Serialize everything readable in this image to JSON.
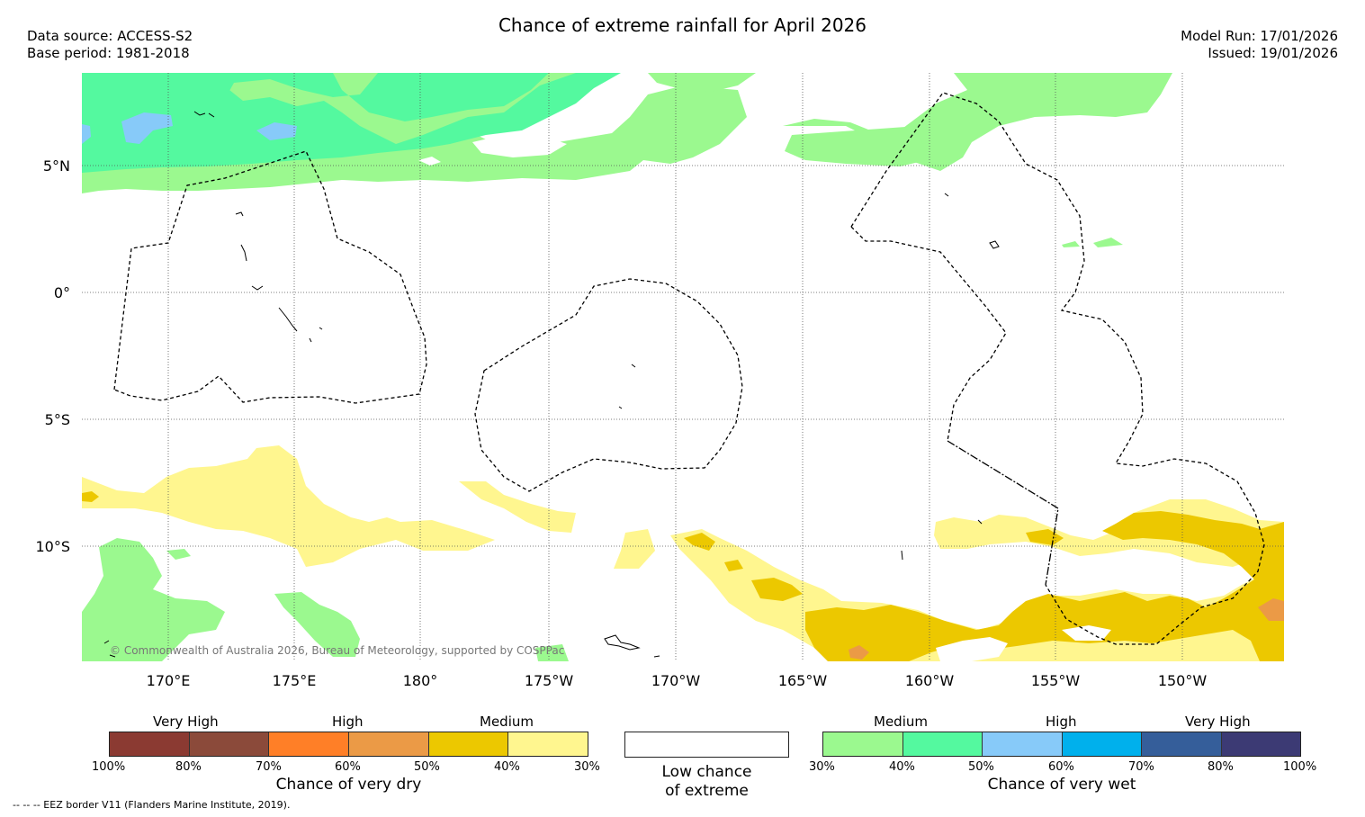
{
  "title": "Chance of extreme rainfall for April 2026",
  "data_source": "Data source: ACCESS-S2",
  "base_period": "Base period: 1981-2018",
  "model_run": "Model Run: 17/01/2026",
  "issued": "Issued: 19/01/2026",
  "copyright": "© Commonwealth of Australia 2026, Bureau of Meteorology, supported by COSPPac",
  "map": {
    "lat_labels": [
      "5°N",
      "0°",
      "5°S",
      "10°S"
    ],
    "lon_labels": [
      "170°E",
      "175°E",
      "180°",
      "175°W",
      "170°W",
      "165°W",
      "160°W",
      "155°W",
      "150°W"
    ],
    "colors": {
      "dry_30": "#fff68f",
      "dry_40": "#ecc800",
      "dry_50": "#eb9a46",
      "wet_30": "#9bf98f",
      "wet_40": "#54f99f",
      "wet_50": "#87caf9"
    }
  },
  "legend": {
    "dry": {
      "headers": [
        "Very High",
        "High",
        "Medium"
      ],
      "colors": [
        "#8b3a32",
        "#8b4a3a",
        "#ff7f27",
        "#eb9a46",
        "#ecc800",
        "#fff68f"
      ],
      "ticks": [
        "100%",
        "80%",
        "70%",
        "60%",
        "50%",
        "40%",
        "30%"
      ],
      "caption": "Chance of very dry"
    },
    "low": {
      "caption_line1": "Low chance",
      "caption_line2": "of extreme"
    },
    "wet": {
      "headers": [
        "Medium",
        "High",
        "Very High"
      ],
      "colors": [
        "#9bf98f",
        "#54f99f",
        "#87caf9",
        "#00b0ec",
        "#355e9a",
        "#3c3a74"
      ],
      "ticks": [
        "30%",
        "40%",
        "50%",
        "60%",
        "70%",
        "80%",
        "100%"
      ],
      "caption": "Chance of very wet"
    }
  },
  "footnote": "--  --  -- EEZ border V11 (Flanders Marine Institute, 2019)."
}
